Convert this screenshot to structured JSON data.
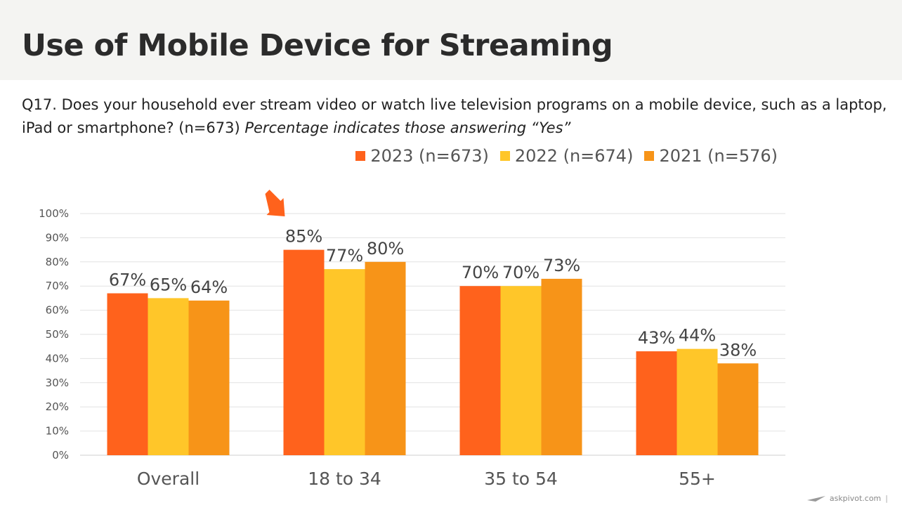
{
  "page": {
    "title": "Use of Mobile Device for Streaming",
    "question": "Q17. Does your household ever stream video or watch live television programs on a mobile device, such as a laptop, iPad or smartphone? (n=673)",
    "question_note": "Percentage indicates those answering “Yes”",
    "footer_brand": "askpivot.com",
    "footer_separator": "|"
  },
  "chart_data": {
    "type": "bar",
    "title": "",
    "xlabel": "",
    "ylabel": "",
    "categories": [
      "Overall",
      "18 to 34",
      "35 to 54",
      "55+"
    ],
    "series": [
      {
        "name": "2023 (n=673)",
        "color": "#ff621c",
        "values": [
          67,
          85,
          70,
          43
        ],
        "labels": [
          "67%",
          "85%",
          "70%",
          "43%"
        ]
      },
      {
        "name": "2022 (n=674)",
        "color": "#ffc629",
        "values": [
          65,
          77,
          70,
          44
        ],
        "labels": [
          "65%",
          "77%",
          "70%",
          "44%"
        ]
      },
      {
        "name": "2021 (n=576)",
        "color": "#f79418",
        "values": [
          64,
          80,
          73,
          38
        ],
        "labels": [
          "64%",
          "80%",
          "73%",
          "38%"
        ]
      }
    ],
    "ylim": [
      0,
      100
    ],
    "yticks": [
      0,
      10,
      20,
      30,
      40,
      50,
      60,
      70,
      80,
      90,
      100
    ],
    "ytick_labels": [
      "0%",
      "10%",
      "20%",
      "30%",
      "40%",
      "50%",
      "60%",
      "70%",
      "80%",
      "90%",
      "100%"
    ],
    "grid": true,
    "legend_position": "top-right",
    "annotation": {
      "type": "arrow",
      "category": "18 to 34",
      "color": "#ff621c"
    }
  }
}
